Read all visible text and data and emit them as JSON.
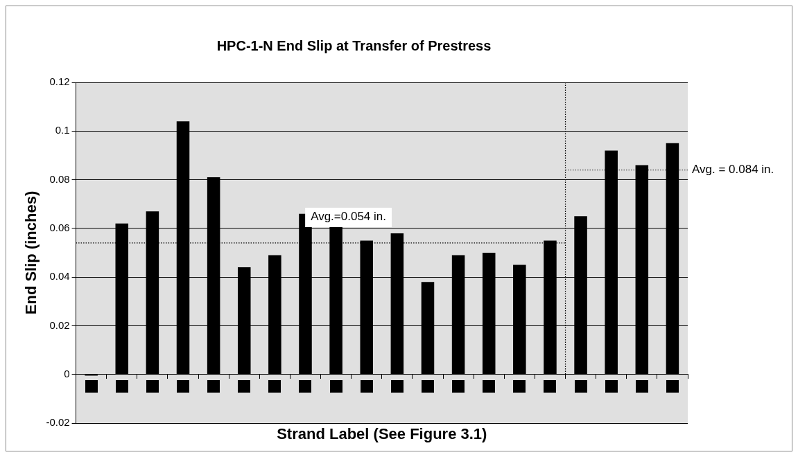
{
  "chart_data": {
    "type": "bar",
    "title": "HPC-1-N End Slip at Transfer of Prestress",
    "xlabel": "Strand Label (See Figure 3.1)",
    "ylabel": "End Slip (inches)",
    "categories": [
      null,
      null,
      null,
      null,
      null,
      null,
      null,
      null,
      null,
      null,
      null,
      null,
      null,
      null,
      null,
      null,
      null,
      null,
      null,
      null
    ],
    "values": [
      -0.0005,
      0.062,
      0.067,
      0.104,
      0.081,
      0.044,
      0.049,
      0.066,
      0.061,
      0.055,
      0.058,
      0.038,
      0.049,
      0.05,
      0.045,
      0.055,
      0.065,
      0.092,
      0.086,
      0.095
    ],
    "color": "#000000",
    "ylim": [
      -0.02,
      0.12
    ],
    "yticks": [
      -0.02,
      0,
      0.02,
      0.04,
      0.06,
      0.08,
      0.1,
      0.12
    ],
    "grid": "y",
    "legend": false,
    "tick_labels": "y",
    "ref_lines": [
      {
        "axis": "y",
        "value": 0.054,
        "label": "Avg.=0.054 in.",
        "line_style": "dotted",
        "color": "#000000"
      },
      {
        "axis": "y",
        "value": 0.084,
        "label": "Avg. = 0.084 in.",
        "line_style": "dotted",
        "color": "#000000"
      }
    ]
  }
}
